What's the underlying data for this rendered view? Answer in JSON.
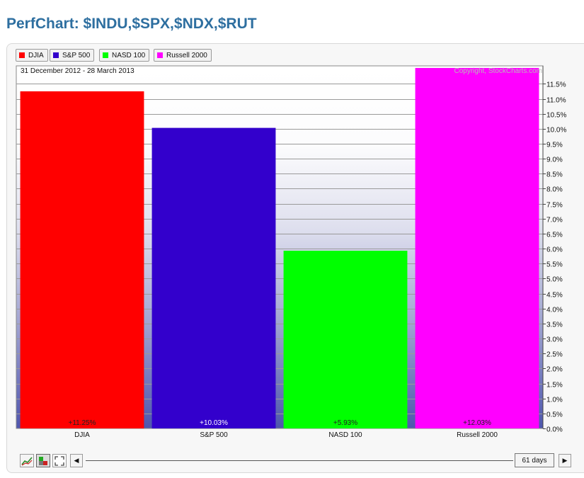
{
  "page": {
    "title": "PerfChart: $INDU,$SPX,$NDX,$RUT"
  },
  "legend": [
    {
      "label": "DJIA",
      "color": "#ff0000"
    },
    {
      "label": "S&P 500",
      "color": "#3300cc"
    },
    {
      "label": "NASD 100",
      "color": "#00ff00"
    },
    {
      "label": "Russell 2000",
      "color": "#ff00ff"
    }
  ],
  "chart_data": {
    "type": "bar",
    "date_range": "31 December 2012 - 28 March 2013",
    "copyright": "Copyright, StockCharts.com",
    "categories": [
      "DJIA",
      "S&P 500",
      "NASD 100",
      "Russell 2000"
    ],
    "values": [
      11.25,
      10.03,
      5.93,
      12.03
    ],
    "value_labels": [
      "+11.25%",
      "+10.03%",
      "+5.93%",
      "+12.03%"
    ],
    "colors": [
      "#ff0000",
      "#3300cc",
      "#00ff00",
      "#ff00ff"
    ],
    "y_ticks": [
      "0.0%",
      "0.5%",
      "1.0%",
      "1.5%",
      "2.0%",
      "2.5%",
      "3.0%",
      "3.5%",
      "4.0%",
      "4.5%",
      "5.0%",
      "5.5%",
      "6.0%",
      "6.5%",
      "7.0%",
      "7.5%",
      "8.0%",
      "8.5%",
      "9.0%",
      "9.5%",
      "10.0%",
      "10.5%",
      "11.0%",
      "11.5%"
    ],
    "y_tick_values": [
      0,
      0.5,
      1,
      1.5,
      2,
      2.5,
      3,
      3.5,
      4,
      4.5,
      5,
      5.5,
      6,
      6.5,
      7,
      7.5,
      8,
      8.5,
      9,
      9.5,
      10,
      10.5,
      11,
      11.5
    ],
    "ylim": [
      0,
      12.1
    ],
    "axis_side": "right",
    "grid": true
  },
  "controls": {
    "days_label": "61 days",
    "prev_glyph": "◀",
    "next_glyph": "▶"
  }
}
